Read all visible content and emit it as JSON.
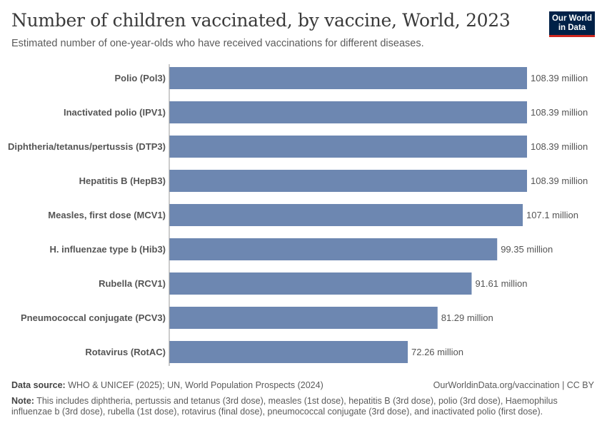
{
  "header": {
    "title": "Number of children vaccinated, by vaccine, World, 2023",
    "subtitle": "Estimated number of one-year-olds who have received vaccinations for different diseases.",
    "logo_line1": "Our World",
    "logo_line2": "in Data"
  },
  "footer": {
    "source_label": "Data source:",
    "source_text": "WHO & UNICEF (2025); UN, World Population Prospects (2024)",
    "url_text": "OurWorldinData.org/vaccination | CC BY",
    "note_label": "Note:",
    "note_text": "This includes diphtheria, pertussis and tetanus (3rd dose), measles (1st dose), hepatitis B (3rd dose), polio (3rd dose), Haemophilus influenzae b (3rd dose), rubella (1st dose), rotavirus (final dose), pneumococcal conjugate (3rd dose), and inactivated polio (first dose)."
  },
  "colors": {
    "bar": "#6d87b1",
    "logo_bg": "#002147",
    "logo_accent": "#ce261e"
  },
  "chart_data": {
    "type": "bar",
    "orientation": "horizontal",
    "categories": [
      "Polio (Pol3)",
      "Inactivated polio (IPV1)",
      "Diphtheria/tetanus/pertussis (DTP3)",
      "Hepatitis B (HepB3)",
      "Measles, first dose (MCV1)",
      "H. influenzae type b (Hib3)",
      "Rubella (RCV1)",
      "Pneumococcal conjugate (PCV3)",
      "Rotavirus (RotAC)"
    ],
    "values": [
      108.39,
      108.39,
      108.39,
      108.39,
      107.1,
      99.35,
      91.61,
      81.29,
      72.26
    ],
    "value_labels": [
      "108.39 million",
      "108.39 million",
      "108.39 million",
      "108.39 million",
      "107.1 million",
      "99.35 million",
      "91.61 million",
      "81.29 million",
      "72.26 million"
    ],
    "unit": "million",
    "xlim": [
      0,
      108.39
    ],
    "grid": false
  }
}
